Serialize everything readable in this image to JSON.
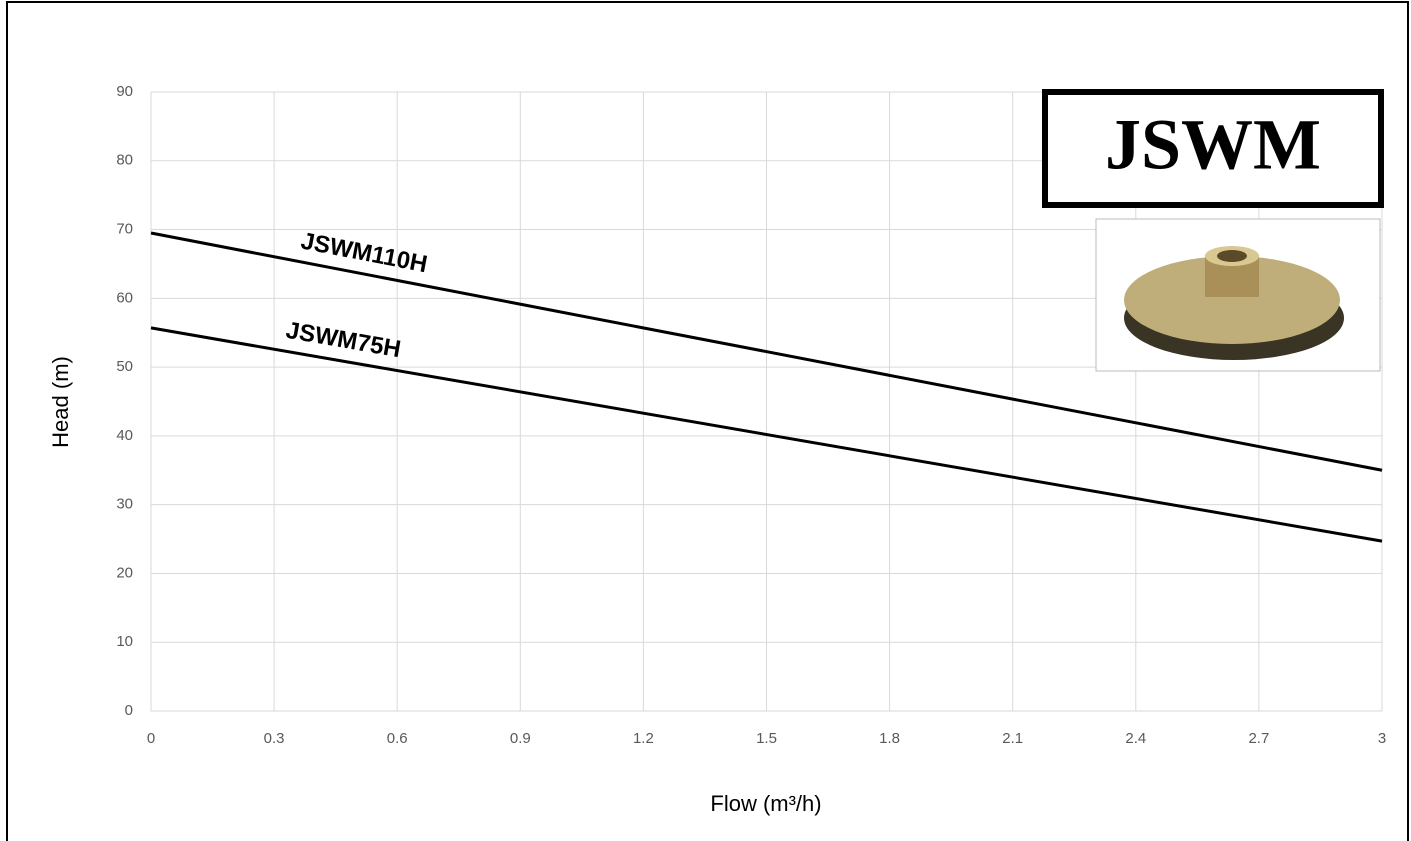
{
  "chart_data": {
    "type": "line",
    "x_label": "Flow (m³/h)",
    "y_label": "Head (m)",
    "x": [
      0,
      3
    ],
    "series": [
      {
        "name": "JSWM110H",
        "color": "#000000",
        "values": [
          69.5,
          35
        ]
      },
      {
        "name": "JSWM75H",
        "color": "#000000",
        "values": [
          55.7,
          24.7
        ]
      }
    ],
    "xlim": [
      0,
      3
    ],
    "xticks": [
      0,
      0.3,
      0.6,
      0.9,
      1.2,
      1.5,
      1.8,
      2.1,
      2.4,
      2.7,
      3
    ],
    "ylim": [
      0,
      90
    ],
    "yticks": [
      0,
      10,
      20,
      30,
      40,
      50,
      60,
      70,
      80,
      90
    ],
    "grid": true,
    "logo": "JSWM"
  }
}
